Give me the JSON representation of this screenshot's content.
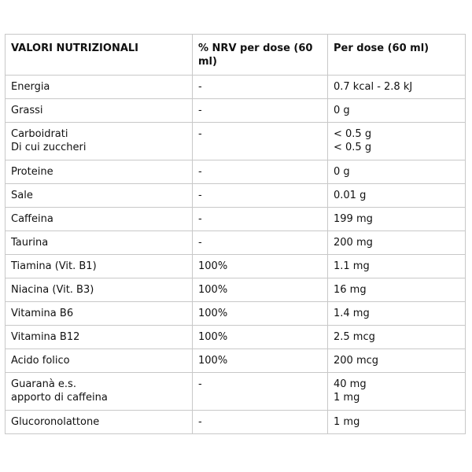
{
  "table": {
    "headers": [
      "VALORI NUTRIZIONALI",
      "% NRV per dose (60 ml)",
      "Per dose (60 ml)"
    ],
    "rows": [
      {
        "nutrient": [
          "Energia"
        ],
        "nrv": [
          "-"
        ],
        "per_dose": [
          "0.7  kcal - 2.8 kJ"
        ]
      },
      {
        "nutrient": [
          "Grassi"
        ],
        "nrv": [
          "-"
        ],
        "per_dose": [
          "0 g"
        ]
      },
      {
        "nutrient": [
          "Carboidrati",
          "Di cui zuccheri"
        ],
        "nrv": [
          "-"
        ],
        "per_dose": [
          "< 0.5 g",
          "< 0.5 g"
        ]
      },
      {
        "nutrient": [
          "Proteine"
        ],
        "nrv": [
          "-"
        ],
        "per_dose": [
          "0 g"
        ]
      },
      {
        "nutrient": [
          "Sale"
        ],
        "nrv": [
          "-"
        ],
        "per_dose": [
          "0.01 g"
        ]
      },
      {
        "nutrient": [
          "Caffeina"
        ],
        "nrv": [
          "-"
        ],
        "per_dose": [
          "199 mg"
        ]
      },
      {
        "nutrient": [
          "Taurina"
        ],
        "nrv": [
          "-"
        ],
        "per_dose": [
          "200 mg"
        ]
      },
      {
        "nutrient": [
          "Tiamina (Vit. B1)"
        ],
        "nrv": [
          "100%"
        ],
        "per_dose": [
          "1.1 mg"
        ]
      },
      {
        "nutrient": [
          "Niacina (Vit. B3)"
        ],
        "nrv": [
          "100%"
        ],
        "per_dose": [
          "16 mg"
        ]
      },
      {
        "nutrient": [
          "Vitamina B6"
        ],
        "nrv": [
          "100%"
        ],
        "per_dose": [
          "1.4 mg"
        ]
      },
      {
        "nutrient": [
          "Vitamina B12"
        ],
        "nrv": [
          "100%"
        ],
        "per_dose": [
          "2.5 mcg"
        ]
      },
      {
        "nutrient": [
          "Acido folico"
        ],
        "nrv": [
          "100%"
        ],
        "per_dose": [
          "200 mcg"
        ]
      },
      {
        "nutrient": [
          "Guaranà e.s.",
          "apporto di caffeina"
        ],
        "nrv": [
          "-"
        ],
        "per_dose": [
          "40 mg",
          "1 mg"
        ]
      },
      {
        "nutrient": [
          "Glucoronolattone"
        ],
        "nrv": [
          "-"
        ],
        "per_dose": [
          "1 mg"
        ]
      }
    ]
  }
}
